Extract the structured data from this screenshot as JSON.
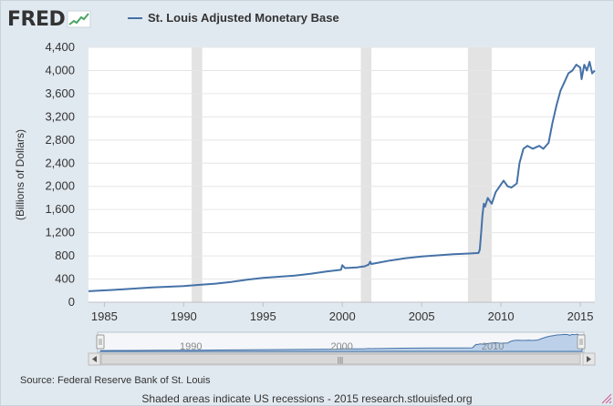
{
  "header": {
    "logo_text": "FRED",
    "legend_label": "St. Louis Adjusted Monetary Base"
  },
  "colors": {
    "series_line": "#4572a7",
    "recession_shade": "#e3e3e3",
    "navigator_fill": "#bcd1e9",
    "page_background": "#e1e9f0"
  },
  "navigator": {
    "year_labels": [
      "1990",
      "2000",
      "2010"
    ],
    "handle_grip": "|||",
    "left_arrow_icon": "arrow-left-icon",
    "right_arrow_icon": "arrow-right-icon"
  },
  "footer": {
    "source": "Source: Federal Reserve Bank of St. Louis",
    "note": "Shaded areas indicate US recessions - 2015 research.stlouisfed.org"
  },
  "chart_data": {
    "type": "line",
    "title": "",
    "xlabel": "",
    "ylabel": "(Billions of Dollars)",
    "ylim": [
      0,
      4400
    ],
    "xlim": [
      "1984-01",
      "2015-12"
    ],
    "yticks": [
      0,
      400,
      800,
      1200,
      1600,
      2000,
      2400,
      2800,
      3200,
      3600,
      4000,
      4400
    ],
    "ytick_labels": [
      "0",
      "400",
      "800",
      "1,200",
      "1,600",
      "2,000",
      "2,400",
      "2,800",
      "3,200",
      "3,600",
      "4,000",
      "4,400"
    ],
    "xticks": [
      "1985",
      "1990",
      "1995",
      "2000",
      "2005",
      "2010",
      "2015"
    ],
    "grid": true,
    "legend": "top",
    "recessions": [
      {
        "start": "1990-07",
        "end": "1991-03"
      },
      {
        "start": "2001-03",
        "end": "2001-11"
      },
      {
        "start": "2007-12",
        "end": "2009-06"
      }
    ],
    "series": [
      {
        "name": "St. Louis Adjusted Monetary Base",
        "points": [
          [
            "1984-01",
            190
          ],
          [
            "1986-01",
            220
          ],
          [
            "1988-01",
            255
          ],
          [
            "1990-01",
            280
          ],
          [
            "1991-01",
            300
          ],
          [
            "1992-01",
            320
          ],
          [
            "1993-01",
            350
          ],
          [
            "1994-01",
            390
          ],
          [
            "1995-01",
            420
          ],
          [
            "1996-01",
            440
          ],
          [
            "1997-01",
            460
          ],
          [
            "1998-01",
            490
          ],
          [
            "1999-01",
            530
          ],
          [
            "1999-12",
            560
          ],
          [
            "2000-01",
            640
          ],
          [
            "2000-03",
            590
          ],
          [
            "2000-12",
            600
          ],
          [
            "2001-06",
            620
          ],
          [
            "2001-09",
            650
          ],
          [
            "2001-10",
            700
          ],
          [
            "2001-11",
            660
          ],
          [
            "2002-06",
            690
          ],
          [
            "2003-01",
            720
          ],
          [
            "2004-01",
            760
          ],
          [
            "2005-01",
            790
          ],
          [
            "2006-01",
            810
          ],
          [
            "2007-01",
            830
          ],
          [
            "2008-01",
            840
          ],
          [
            "2008-08",
            850
          ],
          [
            "2008-09",
            910
          ],
          [
            "2008-10",
            1200
          ],
          [
            "2008-11",
            1500
          ],
          [
            "2008-12",
            1700
          ],
          [
            "2009-01",
            1650
          ],
          [
            "2009-03",
            1800
          ],
          [
            "2009-06",
            1700
          ],
          [
            "2009-09",
            1900
          ],
          [
            "2009-12",
            2000
          ],
          [
            "2010-03",
            2100
          ],
          [
            "2010-06",
            2000
          ],
          [
            "2010-09",
            1980
          ],
          [
            "2011-01",
            2050
          ],
          [
            "2011-03",
            2400
          ],
          [
            "2011-06",
            2650
          ],
          [
            "2011-09",
            2700
          ],
          [
            "2012-01",
            2650
          ],
          [
            "2012-06",
            2700
          ],
          [
            "2012-09",
            2650
          ],
          [
            "2013-01",
            2750
          ],
          [
            "2013-04",
            3100
          ],
          [
            "2013-07",
            3400
          ],
          [
            "2013-10",
            3650
          ],
          [
            "2014-01",
            3800
          ],
          [
            "2014-04",
            3950
          ],
          [
            "2014-07",
            4000
          ],
          [
            "2014-10",
            4100
          ],
          [
            "2015-01",
            4050
          ],
          [
            "2015-02",
            3850
          ],
          [
            "2015-04",
            4100
          ],
          [
            "2015-06",
            4000
          ],
          [
            "2015-08",
            4150
          ],
          [
            "2015-10",
            3950
          ],
          [
            "2015-12",
            4000
          ]
        ]
      }
    ]
  }
}
